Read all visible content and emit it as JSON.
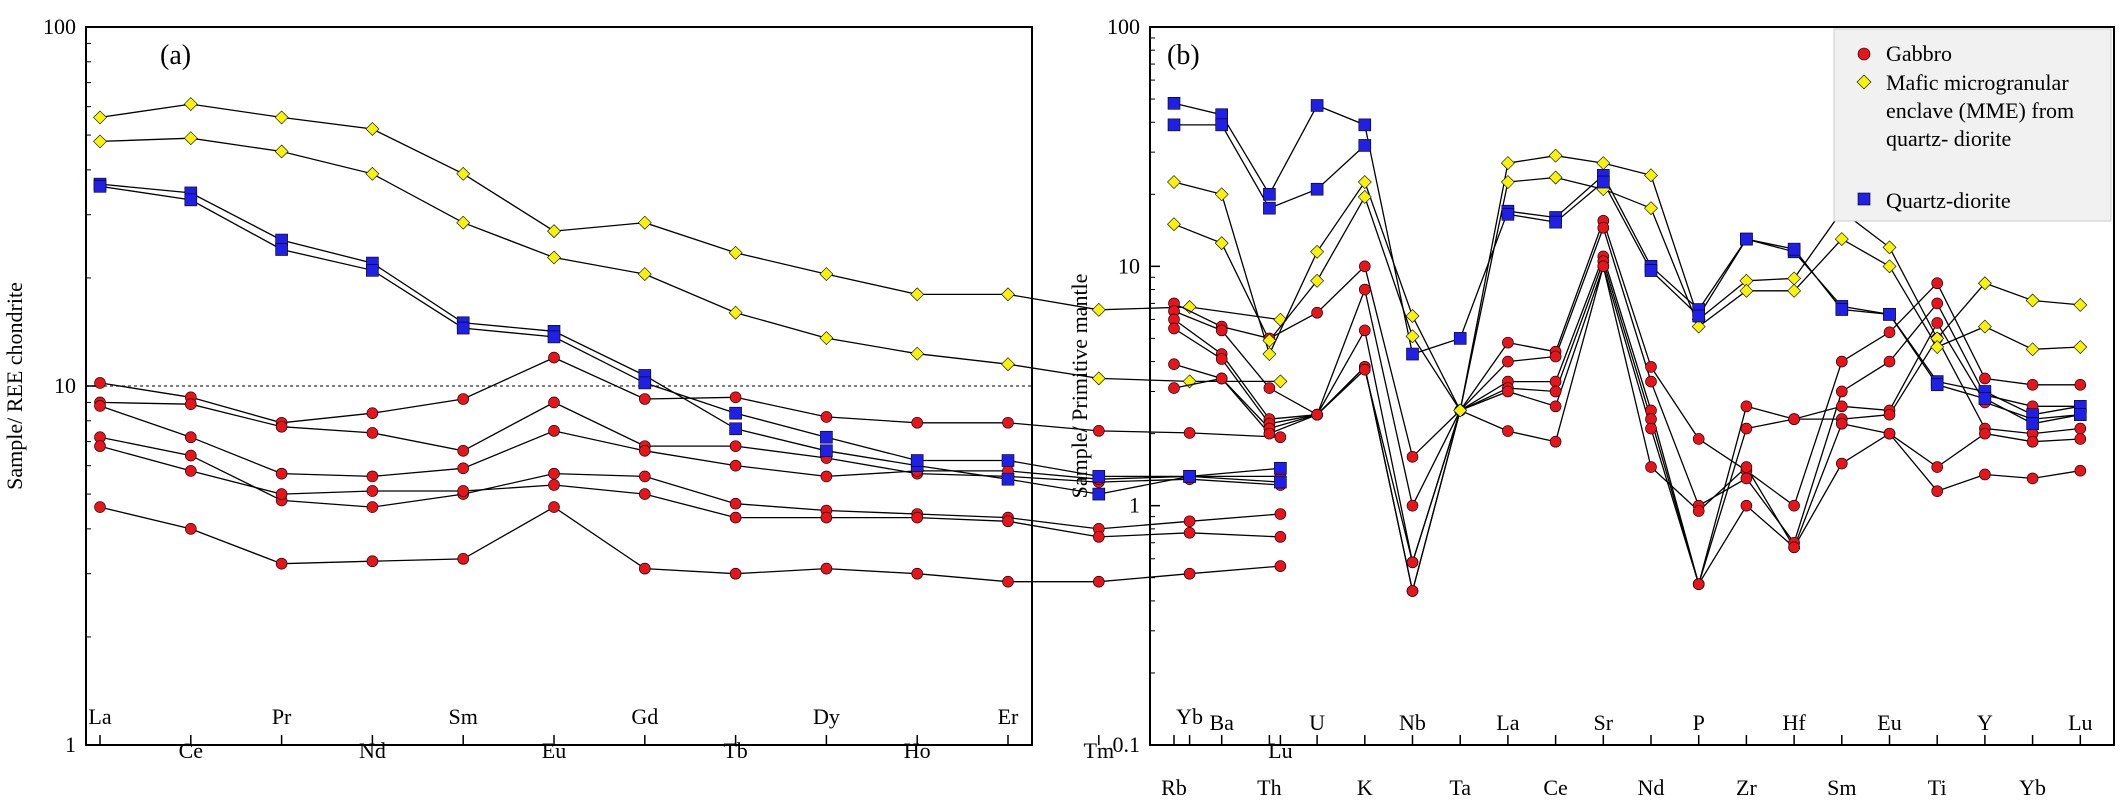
{
  "chart_data": [
    {
      "panel_label": "(a)",
      "type": "line",
      "ylabel": "Sample/ REE chondrite",
      "yscale": "log",
      "ylim": [
        1,
        100
      ],
      "y_ticks": [
        "1",
        "10",
        "100"
      ],
      "reference_line": 10,
      "categories": [
        "La",
        "Ce",
        "Pr",
        "Nd",
        "Sm",
        "Eu",
        "Gd",
        "Tb",
        "Dy",
        "Ho",
        "Er",
        "Tm",
        "Yb",
        "Lu"
      ],
      "series": [
        {
          "group": "gabbro",
          "values": [
            10.2,
            9.3,
            7.9,
            8.4,
            9.2,
            12.0,
            9.2,
            9.3,
            8.2,
            7.9,
            7.9,
            7.5,
            7.4,
            7.2
          ]
        },
        {
          "group": "gabbro",
          "values": [
            9.0,
            8.9,
            7.7,
            7.4,
            6.6,
            9.0,
            6.8,
            6.8,
            6.3,
            5.7,
            5.6,
            5.4,
            5.5,
            5.3
          ]
        },
        {
          "group": "gabbro",
          "values": [
            8.8,
            7.2,
            5.7,
            5.6,
            5.9,
            7.5,
            6.6,
            6.0,
            5.6,
            5.8,
            5.8,
            5.5,
            5.6,
            5.6
          ]
        },
        {
          "group": "gabbro",
          "values": [
            7.2,
            6.4,
            4.8,
            4.6,
            5.0,
            5.7,
            5.6,
            4.7,
            4.5,
            4.4,
            4.3,
            4.0,
            4.2,
            4.4
          ]
        },
        {
          "group": "gabbro",
          "values": [
            6.8,
            5.8,
            5.0,
            5.1,
            5.1,
            5.3,
            5.0,
            4.3,
            4.3,
            4.3,
            4.2,
            3.8,
            3.9,
            3.8
          ]
        },
        {
          "group": "gabbro",
          "values": [
            4.6,
            4.0,
            3.2,
            3.25,
            3.3,
            4.6,
            3.1,
            3.0,
            3.1,
            3.0,
            2.85,
            2.85,
            3.0,
            3.15
          ]
        },
        {
          "group": "mme",
          "values": [
            56,
            61,
            56,
            52,
            39,
            27,
            28.5,
            23.5,
            20.5,
            18,
            18,
            16.3,
            16.6,
            15.3
          ]
        },
        {
          "group": "mme",
          "values": [
            48,
            49,
            45,
            39,
            28.5,
            22.8,
            20.5,
            16,
            13.6,
            12.3,
            11.5,
            10.5,
            10.3,
            10.3
          ]
        },
        {
          "group": "qd",
          "values": [
            36.5,
            34.5,
            25.5,
            22,
            15,
            14.2,
            10.7,
            7.6,
            6.6,
            6.0,
            5.5,
            5.0,
            5.6,
            5.9
          ]
        },
        {
          "group": "qd",
          "values": [
            36,
            33,
            24,
            21,
            14.5,
            13.7,
            10.2,
            8.4,
            7.2,
            6.2,
            6.2,
            5.6,
            5.6,
            5.4
          ]
        }
      ]
    },
    {
      "panel_label": "(b)",
      "type": "line",
      "ylabel": "Sample/ Primitive mantle",
      "yscale": "log",
      "ylim": [
        0.1,
        100
      ],
      "y_ticks": [
        "0.1",
        "1",
        "10",
        "100"
      ],
      "categories": [
        "Rb",
        "Ba",
        "Th",
        "U",
        "K",
        "Nb",
        "Ta",
        "La",
        "Ce",
        "Sr",
        "Nd",
        "P",
        "Zr",
        "Hf",
        "Sm",
        "Eu",
        "Ti",
        "Y",
        "Yb",
        "Lu"
      ],
      "series": [
        {
          "group": "gabbro",
          "values": [
            7.0,
            5.6,
            5.0,
            6.4,
            10.0,
            1.6,
            2.5,
            4.8,
            4.4,
            15.5,
            3.8,
            1.9,
            1.4,
            1.0,
            4.0,
            5.3,
            8.5,
            3.4,
            3.2,
            3.2
          ]
        },
        {
          "group": "gabbro",
          "values": [
            6.5,
            5.4,
            3.1,
            2.4,
            8.0,
            1.0,
            2.5,
            4.0,
            4.2,
            14.5,
            3.3,
            1.0,
            1.3,
            0.7,
            3.0,
            4.0,
            7.0,
            2.9,
            2.6,
            2.6
          ]
        },
        {
          "group": "gabbro",
          "values": [
            6.0,
            4.3,
            2.3,
            2.4,
            5.4,
            0.58,
            2.5,
            3.3,
            3.3,
            11.0,
            2.5,
            0.47,
            2.6,
            2.3,
            2.6,
            2.5,
            5.8,
            2.7,
            2.3,
            2.4
          ]
        },
        {
          "group": "gabbro",
          "values": [
            5.5,
            4.1,
            2.2,
            2.4,
            3.8,
            0.44,
            2.5,
            3.1,
            3.0,
            10.5,
            2.3,
            0.47,
            2.1,
            2.3,
            2.3,
            2.4,
            5.0,
            2.1,
            2.0,
            2.1
          ]
        },
        {
          "group": "gabbro",
          "values": [
            3.9,
            3.4,
            2.1,
            2.4,
            3.8,
            0.44,
            2.5,
            3.0,
            2.6,
            10.0,
            2.1,
            0.47,
            1.0,
            0.67,
            2.2,
            2.0,
            1.45,
            2.0,
            1.85,
            1.9
          ]
        },
        {
          "group": "gabbro",
          "values": [
            3.1,
            3.4,
            2.0,
            2.4,
            3.7,
            0.58,
            2.5,
            2.05,
            1.85,
            10.0,
            1.45,
            0.95,
            1.45,
            0.67,
            1.5,
            2.0,
            1.15,
            1.35,
            1.3,
            1.4
          ]
        },
        {
          "group": "mme",
          "values": [
            22.5,
            20,
            4.3,
            11.5,
            22.5,
            6.2,
            2.5,
            27,
            29,
            27,
            24,
            6.0,
            8.7,
            8.9,
            17,
            12,
            5.0,
            8.5,
            7.2,
            6.9
          ]
        },
        {
          "group": "mme",
          "values": [
            15,
            12.5,
            4.9,
            8.7,
            19.5,
            5.1,
            2.5,
            22.5,
            23.5,
            21,
            17.5,
            5.6,
            7.9,
            7.9,
            13,
            10,
            4.6,
            5.6,
            4.5,
            4.6
          ]
        },
        {
          "group": "qd",
          "values": [
            48,
            43,
            20,
            47,
            39,
            4.3,
            5.0,
            17,
            16,
            24,
            10,
            6.6,
            13,
            11.5,
            6.8,
            6.3,
            3.3,
            3.0,
            2.4,
            2.6
          ]
        },
        {
          "group": "qd",
          "values": [
            39,
            39,
            17.5,
            21,
            32,
            null,
            null,
            16.5,
            15.3,
            22.5,
            9.6,
            6.2,
            13,
            11.8,
            6.6,
            6.3,
            3.2,
            2.8,
            2.2,
            2.4
          ]
        }
      ],
      "legend": {
        "placement": "top-right",
        "entries": [
          {
            "key": "gabbro",
            "lines": [
              "Gabbro"
            ]
          },
          {
            "key": "mme",
            "lines": [
              "Mafic microgranular",
              "enclave (MME) from",
              "quartz- diorite"
            ]
          },
          {
            "key": "qd",
            "lines": [
              "Quartz-diorite"
            ]
          }
        ]
      }
    }
  ],
  "groups": {
    "gabbro": {
      "marker": "circle",
      "color": "#e8141c"
    },
    "mme": {
      "marker": "diamond",
      "color": "#f7f20c"
    },
    "qd": {
      "marker": "square",
      "color": "#1f1fe6"
    }
  }
}
